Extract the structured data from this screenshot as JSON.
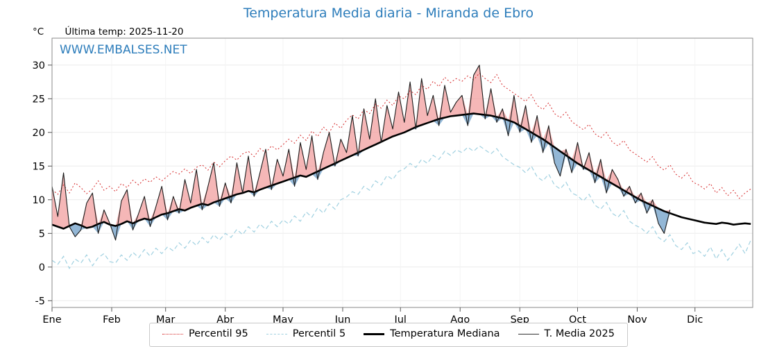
{
  "chart_data": {
    "type": "line",
    "title": "Temperatura Media diaria - Miranda de Ebro",
    "unit_label": "°C",
    "last_temp_label": "Última temp: 2025-11-20",
    "watermark": "WWW.EMBALSES.NET",
    "xlabel": "",
    "ylabel": "°C",
    "ylim": [
      -6,
      34
    ],
    "yticks": [
      -5,
      0,
      5,
      10,
      15,
      20,
      25,
      30
    ],
    "x_start": 1,
    "x_step": 3,
    "x_max_day": 365,
    "grid": true,
    "legend_position": "bottom-center",
    "month_ticks": [
      {
        "label": "Ene",
        "day": 1
      },
      {
        "label": "Feb",
        "day": 32
      },
      {
        "label": "Mar",
        "day": 60
      },
      {
        "label": "Abr",
        "day": 91
      },
      {
        "label": "May",
        "day": 121
      },
      {
        "label": "Jun",
        "day": 152
      },
      {
        "label": "Jul",
        "day": 182
      },
      {
        "label": "Ago",
        "day": 213
      },
      {
        "label": "Sep",
        "day": 244
      },
      {
        "label": "Oct",
        "day": 274
      },
      {
        "label": "Nov",
        "day": 305
      },
      {
        "label": "Dic",
        "day": 335
      }
    ],
    "fills": {
      "above_color": "#f09090",
      "above_opacity": 0.65,
      "below_color": "#6f9fc8",
      "below_opacity": 0.75
    },
    "series": [
      {
        "name": "Percentil 95",
        "color": "#d62728",
        "style": "dotted",
        "values": [
          11.5,
          10.8,
          12.2,
          11.0,
          12.5,
          11.8,
          10.9,
          11.6,
          12.8,
          11.4,
          12.0,
          11.2,
          12.4,
          11.8,
          12.9,
          12.2,
          13.1,
          12.6,
          13.4,
          12.8,
          13.5,
          14.2,
          13.8,
          14.6,
          13.9,
          14.8,
          15.2,
          14.4,
          15.6,
          14.9,
          15.8,
          16.5,
          15.9,
          16.8,
          17.2,
          16.4,
          17.6,
          17.0,
          18.0,
          17.4,
          18.2,
          19.0,
          18.4,
          19.6,
          18.8,
          20.2,
          19.4,
          20.8,
          20.0,
          21.4,
          20.6,
          21.8,
          22.6,
          22.0,
          23.4,
          22.8,
          24.2,
          23.6,
          24.8,
          24.0,
          25.4,
          25.0,
          26.2,
          25.6,
          27.0,
          26.4,
          27.6,
          26.8,
          28.2,
          27.4,
          28.0,
          27.6,
          28.4,
          27.8,
          28.8,
          28.0,
          27.4,
          28.6,
          27.0,
          26.4,
          25.8,
          25.2,
          24.6,
          25.6,
          24.0,
          23.4,
          24.4,
          22.8,
          22.2,
          23.0,
          21.6,
          21.0,
          20.4,
          21.2,
          19.8,
          19.2,
          20.0,
          18.6,
          18.0,
          18.8,
          17.4,
          16.8,
          16.2,
          15.6,
          16.4,
          15.0,
          14.4,
          15.2,
          13.8,
          13.2,
          14.0,
          12.6,
          12.2,
          11.6,
          12.4,
          11.0,
          11.8,
          10.6,
          11.4,
          10.2,
          11.0,
          11.6
        ]
      },
      {
        "name": "Percentil 5",
        "color": "#9fd0e0",
        "style": "dashed",
        "values": [
          1.0,
          0.4,
          1.6,
          -0.2,
          1.2,
          0.6,
          1.8,
          0.2,
          1.4,
          2.0,
          0.8,
          0.6,
          1.8,
          1.0,
          2.2,
          1.4,
          2.6,
          1.6,
          2.8,
          2.0,
          3.0,
          2.4,
          3.6,
          2.8,
          4.0,
          3.2,
          4.4,
          3.6,
          4.8,
          4.0,
          5.0,
          4.4,
          5.6,
          4.8,
          6.0,
          5.2,
          6.4,
          5.6,
          6.8,
          6.0,
          7.0,
          6.4,
          7.6,
          6.8,
          8.2,
          7.4,
          8.8,
          8.0,
          9.4,
          8.6,
          10.0,
          10.4,
          11.2,
          10.8,
          12.0,
          11.4,
          12.8,
          12.2,
          13.6,
          13.0,
          14.2,
          14.6,
          15.4,
          14.8,
          16.0,
          15.4,
          16.6,
          16.0,
          17.2,
          16.6,
          17.4,
          17.0,
          17.8,
          17.2,
          18.0,
          17.4,
          16.8,
          17.6,
          16.4,
          15.8,
          15.2,
          14.8,
          14.0,
          15.0,
          13.4,
          12.8,
          13.8,
          12.2,
          11.6,
          12.6,
          11.0,
          10.6,
          9.8,
          10.8,
          9.2,
          8.6,
          9.6,
          8.0,
          7.4,
          8.4,
          6.8,
          6.2,
          5.8,
          5.0,
          6.0,
          4.4,
          3.8,
          4.8,
          3.2,
          2.6,
          3.6,
          2.0,
          2.4,
          1.6,
          3.0,
          1.2,
          2.6,
          1.0,
          2.2,
          3.4,
          2.0,
          4.0
        ]
      },
      {
        "name": "Temperatura Mediana",
        "color": "#000000",
        "style": "solid-thick",
        "values": [
          6.3,
          6.0,
          5.7,
          6.1,
          6.5,
          6.2,
          5.8,
          6.0,
          6.4,
          6.7,
          6.3,
          6.1,
          6.4,
          6.8,
          6.5,
          6.9,
          7.2,
          7.0,
          7.4,
          7.8,
          8.0,
          8.3,
          8.6,
          8.4,
          8.8,
          9.1,
          9.4,
          9.2,
          9.6,
          9.9,
          10.2,
          10.5,
          10.8,
          11.0,
          11.3,
          11.1,
          11.5,
          11.8,
          12.1,
          12.4,
          12.7,
          13.0,
          13.3,
          13.6,
          13.4,
          13.8,
          14.2,
          14.6,
          15.0,
          15.4,
          15.8,
          16.2,
          16.6,
          17.0,
          17.4,
          17.8,
          18.2,
          18.6,
          19.0,
          19.4,
          19.7,
          20.0,
          20.4,
          20.8,
          21.1,
          21.4,
          21.7,
          22.0,
          22.2,
          22.4,
          22.5,
          22.6,
          22.7,
          22.8,
          22.7,
          22.6,
          22.5,
          22.3,
          22.1,
          21.8,
          21.5,
          21.0,
          20.5,
          20.0,
          19.5,
          19.0,
          18.4,
          17.8,
          17.2,
          16.6,
          16.0,
          15.4,
          14.9,
          14.4,
          13.9,
          13.4,
          12.9,
          12.4,
          11.9,
          11.4,
          10.9,
          10.4,
          9.9,
          9.5,
          9.1,
          8.7,
          8.3,
          8.0,
          7.7,
          7.4,
          7.2,
          7.0,
          6.8,
          6.6,
          6.5,
          6.4,
          6.6,
          6.5,
          6.3,
          6.4,
          6.5,
          6.4
        ]
      },
      {
        "name": "T. Media 2025",
        "color": "#1a1a1a",
        "style": "solid-thin",
        "values": [
          12.0,
          7.5,
          14.0,
          6.0,
          4.5,
          5.5,
          9.5,
          11.0,
          5.0,
          8.5,
          6.5,
          4.0,
          9.8,
          11.5,
          5.5,
          8.0,
          10.5,
          6.0,
          9.0,
          12.0,
          7.0,
          10.5,
          8.0,
          13.0,
          9.5,
          14.5,
          8.5,
          12.0,
          15.5,
          9.0,
          12.5,
          9.5,
          15.5,
          11.0,
          16.5,
          10.5,
          14.0,
          17.5,
          11.5,
          16.0,
          13.5,
          17.5,
          12.0,
          18.5,
          14.5,
          19.5,
          13.0,
          17.0,
          20.0,
          15.0,
          19.0,
          17.0,
          22.5,
          16.5,
          23.5,
          19.0,
          25.0,
          18.5,
          24.0,
          20.5,
          26.0,
          21.5,
          27.5,
          20.5,
          28.0,
          22.5,
          25.5,
          21.0,
          27.0,
          23.0,
          24.5,
          25.5,
          21.0,
          28.5,
          30.0,
          22.0,
          26.5,
          21.5,
          23.5,
          19.5,
          25.5,
          20.0,
          24.0,
          18.5,
          22.5,
          17.0,
          21.0,
          15.5,
          13.5,
          17.5,
          14.0,
          18.5,
          14.5,
          17.0,
          12.5,
          16.0,
          11.0,
          14.5,
          13.0,
          10.5,
          12.0,
          9.5,
          11.0,
          8.0,
          10.0,
          6.5,
          5.0,
          8.5
        ]
      }
    ]
  }
}
